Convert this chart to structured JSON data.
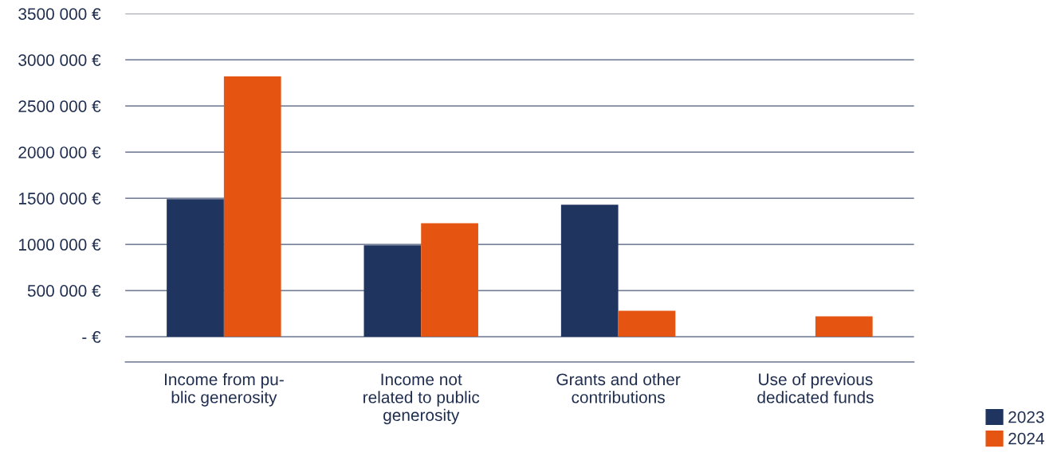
{
  "chart_data": {
    "type": "bar",
    "categories": [
      "Income from pu-\nblic generosity",
      "Income not\nrelated to public\ngenerosity",
      "Grants and other\ncontributions",
      "Use of previous\ndedicated funds"
    ],
    "series": [
      {
        "name": "2023",
        "color": "#1f3560",
        "values": [
          1490000,
          990000,
          1430000,
          0
        ]
      },
      {
        "name": "2024",
        "color": "#e55511",
        "values": [
          2820000,
          1230000,
          280000,
          220000
        ]
      }
    ],
    "ylim": [
      -275000,
      3500000
    ],
    "yticks": [
      {
        "value": 0,
        "label": "- €"
      },
      {
        "value": 500000,
        "label": "500 000 €"
      },
      {
        "value": 1000000,
        "label": "1000 000 €"
      },
      {
        "value": 1500000,
        "label": "1500 000 €"
      },
      {
        "value": 2000000,
        "label": "2000 000 €"
      },
      {
        "value": 2500000,
        "label": "2500 000 €"
      },
      {
        "value": 3000000,
        "label": "3000 000 €"
      },
      {
        "value": 3500000,
        "label": "3500 000 €"
      }
    ],
    "grid": "y",
    "legend": "bottom right"
  }
}
